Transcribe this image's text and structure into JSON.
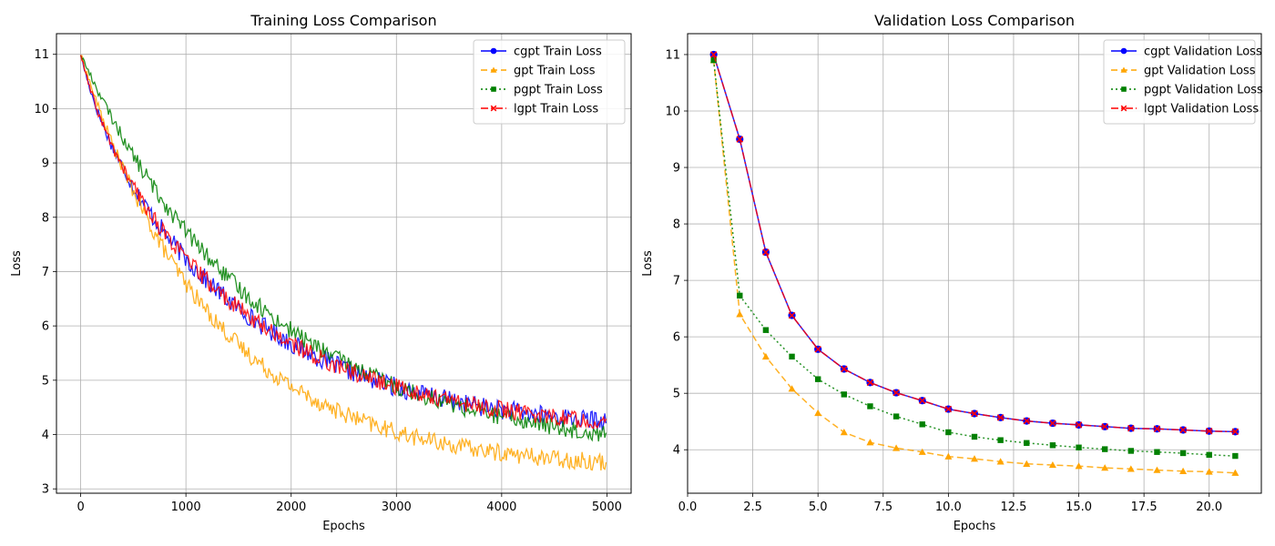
{
  "chart_data": [
    {
      "type": "line",
      "title": "Training Loss Comparison",
      "xlabel": "Epochs",
      "ylabel": "Loss",
      "xlim": [
        -230,
        5230
      ],
      "ylim": [
        2.92,
        11.38
      ],
      "xticks": [
        0,
        1000,
        2000,
        3000,
        4000,
        5000
      ],
      "yticks": [
        3,
        4,
        5,
        6,
        7,
        8,
        9,
        10,
        11
      ],
      "grid": true,
      "legend_position": "top-right",
      "series": [
        {
          "name": "cgpt Train Loss",
          "color": "#0000ff",
          "linestyle": "solid",
          "marker": "circle",
          "start": 11.0,
          "plateau": 4.0,
          "k": 0.00065,
          "lag": 0.45,
          "delay": 0.12,
          "noise": 0.18
        },
        {
          "name": "gpt Train Loss",
          "color": "#ffa500",
          "linestyle": "dashed",
          "marker": "triangle",
          "start": 11.0,
          "plateau": 3.35,
          "k": 0.0008,
          "lag": 0.0,
          "delay": 0.0,
          "noise": 0.16
        },
        {
          "name": "pgpt Train Loss",
          "color": "#008000",
          "linestyle": "dotted",
          "marker": "square",
          "start": 11.0,
          "plateau": 3.6,
          "k": 0.00058,
          "lag": 0.0,
          "delay": 0.0,
          "noise": 0.16
        },
        {
          "name": "lgpt Train Loss",
          "color": "#ff0000",
          "linestyle": "dashdot",
          "marker": "x",
          "start": 11.0,
          "plateau": 4.0,
          "k": 0.00065,
          "lag": 0.45,
          "delay": 0.12,
          "noise": 0.16
        }
      ]
    },
    {
      "type": "line",
      "title": "Validation Loss Comparison",
      "xlabel": "Epochs",
      "ylabel": "Loss",
      "xlim": [
        0,
        22
      ],
      "ylim": [
        3.23,
        11.37
      ],
      "xticks": [
        0.0,
        2.5,
        5.0,
        7.5,
        10.0,
        12.5,
        15.0,
        17.5,
        20.0
      ],
      "xtick_labels": [
        "0.0",
        "2.5",
        "5.0",
        "7.5",
        "10.0",
        "12.5",
        "15.0",
        "17.5",
        "20.0"
      ],
      "yticks": [
        4,
        5,
        6,
        7,
        8,
        9,
        10,
        11
      ],
      "grid": true,
      "legend_position": "top-right",
      "x": [
        1,
        2,
        3,
        4,
        5,
        6,
        7,
        8,
        9,
        10,
        11,
        12,
        13,
        14,
        15,
        16,
        17,
        18,
        19,
        20,
        21
      ],
      "series": [
        {
          "name": "cgpt Validation Loss",
          "color": "#0000ff",
          "linestyle": "solid",
          "marker": "circle",
          "values": [
            11.0,
            9.5,
            7.5,
            6.38,
            5.78,
            5.43,
            5.19,
            5.01,
            4.87,
            4.72,
            4.64,
            4.57,
            4.51,
            4.47,
            4.44,
            4.41,
            4.38,
            4.37,
            4.35,
            4.33,
            4.32
          ]
        },
        {
          "name": "gpt Validation Loss",
          "color": "#ffa500",
          "linestyle": "dashed",
          "marker": "triangle",
          "values": [
            10.9,
            6.4,
            5.65,
            5.08,
            4.65,
            4.31,
            4.13,
            4.03,
            3.96,
            3.88,
            3.84,
            3.79,
            3.75,
            3.73,
            3.71,
            3.68,
            3.66,
            3.64,
            3.62,
            3.61,
            3.59
          ]
        },
        {
          "name": "pgpt Validation Loss",
          "color": "#008000",
          "linestyle": "dotted",
          "marker": "square",
          "values": [
            10.9,
            6.73,
            6.12,
            5.65,
            5.25,
            4.98,
            4.77,
            4.59,
            4.45,
            4.31,
            4.23,
            4.17,
            4.12,
            4.08,
            4.04,
            4.01,
            3.98,
            3.96,
            3.94,
            3.91,
            3.89
          ]
        },
        {
          "name": "lgpt Validation Loss",
          "color": "#ff0000",
          "linestyle": "dashdot",
          "marker": "x",
          "values": [
            11.0,
            9.5,
            7.5,
            6.38,
            5.78,
            5.43,
            5.19,
            5.01,
            4.87,
            4.72,
            4.64,
            4.57,
            4.51,
            4.47,
            4.44,
            4.41,
            4.38,
            4.37,
            4.35,
            4.33,
            4.32
          ]
        }
      ]
    }
  ]
}
